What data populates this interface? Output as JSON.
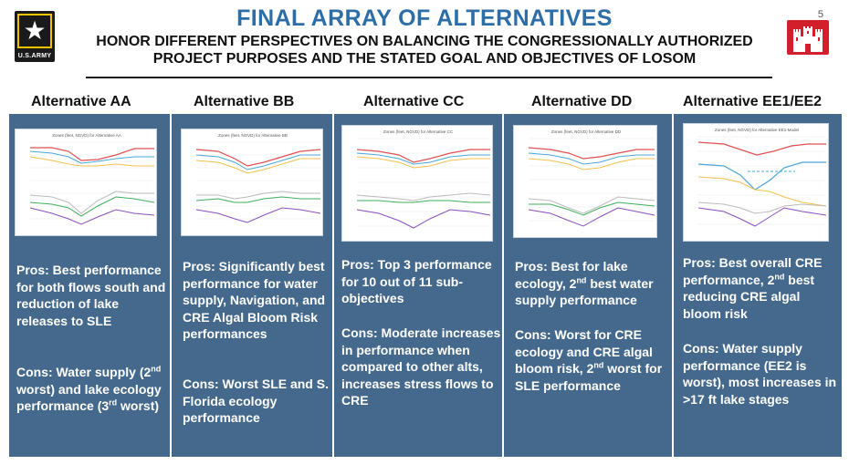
{
  "slide": {
    "number": "5",
    "title": "FINAL ARRAY OF ALTERNATIVES",
    "subtitle_line1": "HONOR DIFFERENT PERSPECTIVES ON BALANCING THE CONGRESSIONALLY AUTHORIZED",
    "subtitle_line2": "PROJECT PURPOSES AND THE STATED GOAL AND OBJECTIVES OF LOSOM"
  },
  "logos": {
    "army_text": "U.S.ARMY",
    "army_icon": "star-icon",
    "usace_icon": "castle-icon",
    "colors": {
      "army_bg": "#1a1a1a",
      "army_border": "#f2c400",
      "usace_bg": "#d21f2b"
    }
  },
  "theme": {
    "title_color": "#2e6ea6",
    "panel_bg": "#44698c"
  },
  "alternatives": [
    {
      "header": "Alternative AA",
      "chart_title": "Zones (feet, NGVD) for Alternative AA",
      "pros_html": "Pros: Best performance for both flows south and reduction of lake releases to SLE",
      "cons_html": "Cons: Water supply (2<sup>nd</sup> worst) and lake ecology performance (3<sup>rd</sup> worst)"
    },
    {
      "header": "Alternative BB",
      "chart_title": "Zones (feet, NGVD) for Alternative BB",
      "pros_html": "Pros: Significantly best performance for water supply, Navigation, and CRE Algal Bloom Risk performances",
      "cons_html": "Cons: Worst SLE and S. Florida ecology performance"
    },
    {
      "header": "Alternative CC",
      "chart_title": "Zones (feet, NGVD) for Alternative CC",
      "pros_html": "Pros: Top 3 performance for 10 out of 11 sub-objectives",
      "cons_html": "Cons: Moderate increases in performance when compared to other alts, increases stress flows to CRE"
    },
    {
      "header": "Alternative DD",
      "chart_title": "Zones (feet, NGVD) for Alternative DD",
      "pros_html": "Pros: Best for lake ecology, 2<sup>nd</sup> best water supply performance",
      "cons_html": "Cons: Worst for CRE ecology and CRE algal bloom risk, 2<sup>nd</sup> worst for SLE performance"
    },
    {
      "header": "Alternative EE1/EE2",
      "chart_title": "Zones (feet, NGVD) for Alternative EE1-Model",
      "pros_html": "Pros: Best overall CRE performance, 2<sup>nd</sup> best reducing CRE algal bloom risk",
      "cons_html": "Cons: Water supply performance (EE2 is worst), most increases in >17 ft lake stages"
    }
  ]
}
